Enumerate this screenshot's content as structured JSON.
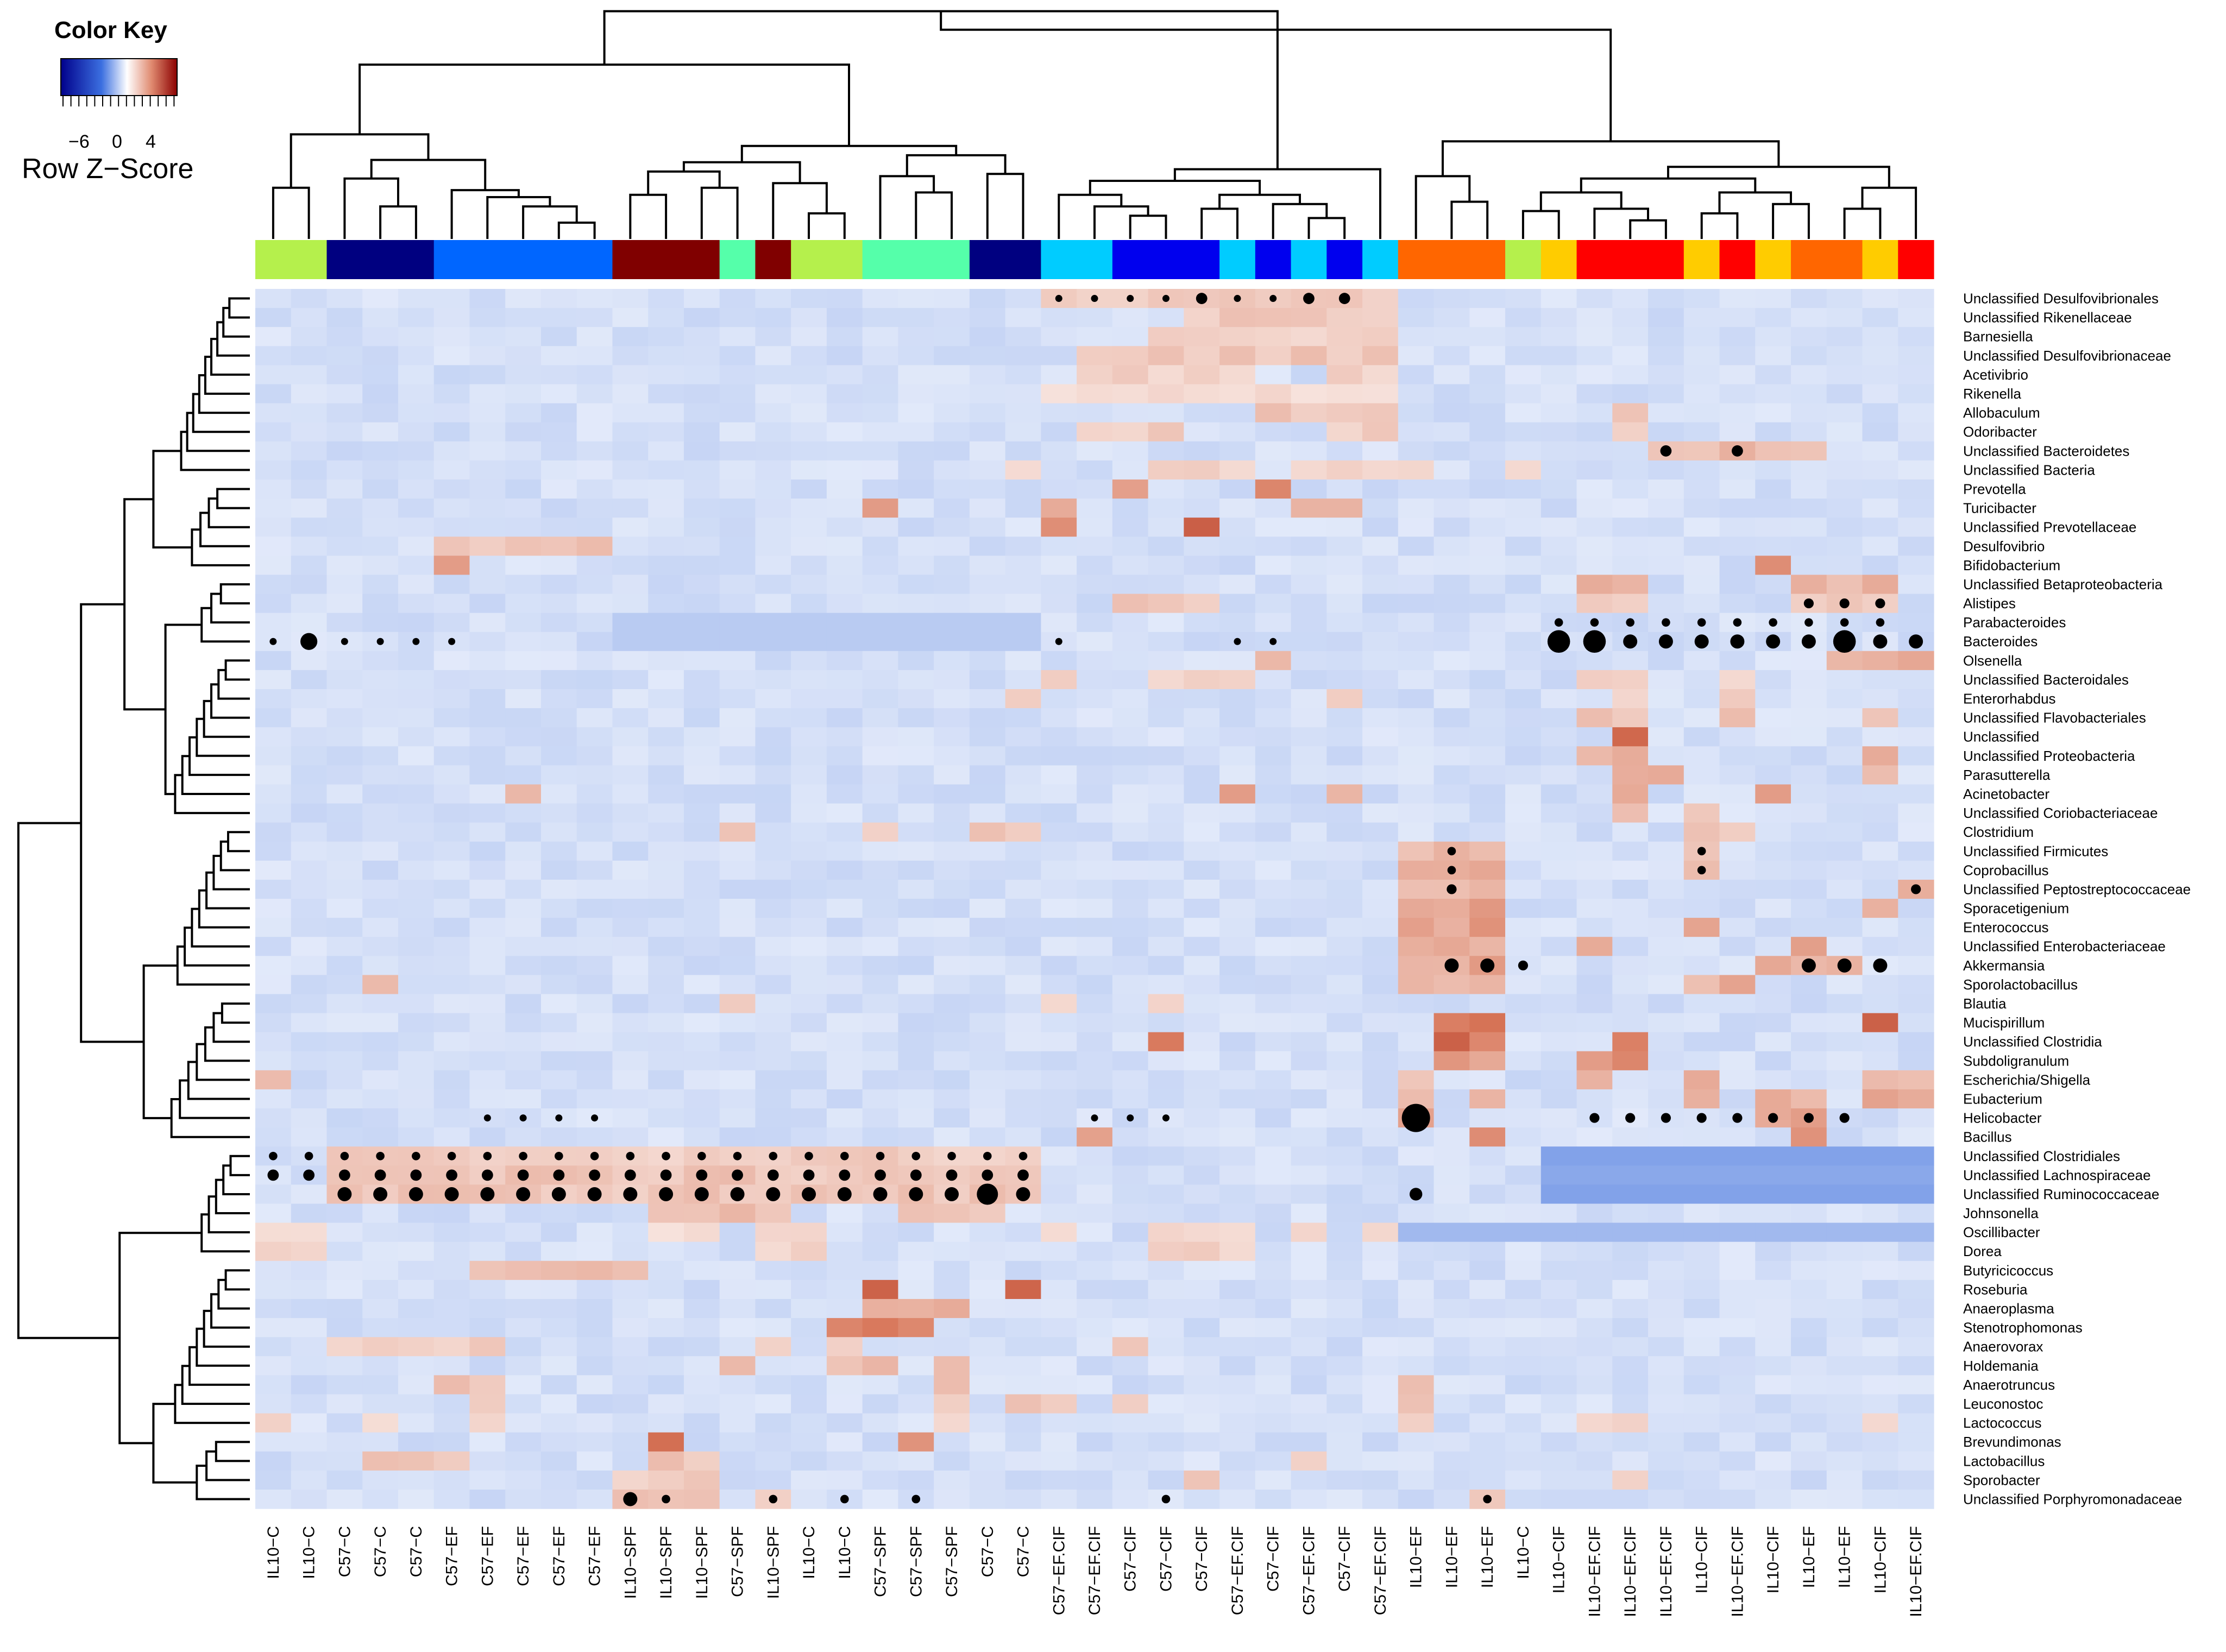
{
  "colors": {
    "low": "#00008b",
    "mid": "#ffffff",
    "high": "#8b0000",
    "background": "#ffffff"
  },
  "chart_data": {
    "type": "heatmap",
    "title": "",
    "color_key": {
      "title": "Color Key",
      "label": "Row Z−Score",
      "ticks": [
        "−6",
        "0",
        "4"
      ],
      "range": [
        -8,
        6
      ]
    },
    "group_colors": {
      "IL10-C": "#b5f04c",
      "C57-C": "#000080",
      "C57-EF": "#0066ff",
      "IL10-SPF": "#800000",
      "C57-SPF": "#55ffaa",
      "C57-EF.CIF": "#00ccff",
      "C57-CIF": "#0000ee",
      "IL10-EF": "#ff6600",
      "IL10-CIF": "#ffcc00",
      "IL10-EF.CIF": "#ff0000"
    },
    "columns": [
      "IL10−C",
      "IL10−C",
      "C57−C",
      "C57−C",
      "C57−C",
      "C57−EF",
      "C57−EF",
      "C57−EF",
      "C57−EF",
      "C57−EF",
      "IL10−SPF",
      "IL10−SPF",
      "IL10−SPF",
      "C57−SPF",
      "IL10−SPF",
      "IL10−C",
      "IL10−C",
      "C57−SPF",
      "C57−SPF",
      "C57−SPF",
      "C57−C",
      "C57−C",
      "C57−EF.CIF",
      "C57−EF.CIF",
      "C57−CIF",
      "C57−CIF",
      "C57−CIF",
      "C57−EF.CIF",
      "C57−CIF",
      "C57−EF.CIF",
      "C57−CIF",
      "C57−EF.CIF",
      "IL10−EF",
      "IL10−EF",
      "IL10−EF",
      "IL10−C",
      "IL10−CIF",
      "IL10−EF.CIF",
      "IL10−EF.CIF",
      "IL10−EF.CIF",
      "IL10−CIF",
      "IL10−EF.CIF",
      "IL10−CIF",
      "IL10−EF",
      "IL10−EF",
      "IL10−CIF",
      "IL10−EF.CIF"
    ],
    "column_groups": [
      "IL10-C",
      "IL10-C",
      "C57-C",
      "C57-C",
      "C57-C",
      "C57-EF",
      "C57-EF",
      "C57-EF",
      "C57-EF",
      "C57-EF",
      "IL10-SPF",
      "IL10-SPF",
      "IL10-SPF",
      "C57-SPF",
      "IL10-SPF",
      "IL10-C",
      "IL10-C",
      "C57-SPF",
      "C57-SPF",
      "C57-SPF",
      "C57-C",
      "C57-C",
      "C57-EF.CIF",
      "C57-EF.CIF",
      "C57-CIF",
      "C57-CIF",
      "C57-CIF",
      "C57-EF.CIF",
      "C57-CIF",
      "C57-EF.CIF",
      "C57-CIF",
      "C57-EF.CIF",
      "IL10-EF",
      "IL10-EF",
      "IL10-EF",
      "IL10-C",
      "IL10-CIF",
      "IL10-EF.CIF",
      "IL10-EF.CIF",
      "IL10-EF.CIF",
      "IL10-CIF",
      "IL10-EF.CIF",
      "IL10-CIF",
      "IL10-EF",
      "IL10-EF",
      "IL10-CIF",
      "IL10-EF.CIF"
    ],
    "rows": [
      "Unclassified Desulfovibrionales",
      "Unclassified Rikenellaceae",
      "Barnesiella",
      "Unclassified Desulfovibrionaceae",
      "Acetivibrio",
      "Rikenella",
      "Allobaculum",
      "Odoribacter",
      "Unclassified Bacteroidetes",
      "Unclassified Bacteria",
      "Prevotella",
      "Turicibacter",
      "Unclassified Prevotellaceae",
      "Desulfovibrio",
      "Bifidobacterium",
      "Unclassified Betaproteobacteria",
      "Alistipes",
      "Parabacteroides",
      "Bacteroides",
      "Olsenella",
      "Unclassified Bacteroidales",
      "Enterorhabdus",
      "Unclassified Flavobacteriales",
      "Unclassified",
      "Unclassified Proteobacteria",
      "Parasutterella",
      "Acinetobacter",
      "Unclassified Coriobacteriaceae",
      "Clostridium",
      "Unclassified Firmicutes",
      "Coprobacillus",
      "Unclassified Peptostreptococcaceae",
      "Sporacetigenium",
      "Enterococcus",
      "Unclassified Enterobacteriaceae",
      "Akkermansia",
      "Sporolactobacillus",
      "Blautia",
      "Mucispirillum",
      "Unclassified Clostridia",
      "Subdoligranulum",
      "Escherichia/Shigella",
      "Eubacterium",
      "Helicobacter",
      "Bacillus",
      "Unclassified Clostridiales",
      "Unclassified Lachnospiraceae",
      "Unclassified Ruminococcaceae",
      "Johnsonella",
      "Oscillibacter",
      "Dorea",
      "Butyricicoccus",
      "Roseburia",
      "Anaeroplasma",
      "Stenotrophomonas",
      "Anaerovorax",
      "Holdemania",
      "Anaerotruncus",
      "Leuconostoc",
      "Lactococcus",
      "Brevundimonas",
      "Lactobacillus",
      "Sporobacter",
      "Unclassified Porphyromonadaceae"
    ],
    "hot_cells": [
      {
        "row": 0,
        "cols": [
          22,
          23,
          24,
          25,
          26,
          27,
          28,
          29,
          30,
          31
        ],
        "value": 1.5
      },
      {
        "row": 1,
        "cols": [
          26,
          27,
          28,
          29,
          30,
          31
        ],
        "value": 1.5
      },
      {
        "row": 2,
        "cols": [
          25,
          26,
          27,
          28,
          29,
          30,
          31
        ],
        "value": 1.2
      },
      {
        "row": 3,
        "cols": [
          23,
          24,
          25,
          26,
          27,
          28,
          29,
          30,
          31
        ],
        "value": 1.6
      },
      {
        "row": 4,
        "cols": [
          23,
          24,
          25,
          26,
          27,
          30,
          31
        ],
        "value": 1.3
      },
      {
        "row": 5,
        "cols": [
          22,
          23,
          24,
          25,
          26,
          27,
          28,
          29,
          30,
          31
        ],
        "value": 1.0
      },
      {
        "row": 6,
        "cols": [
          28,
          29,
          30,
          31,
          38
        ],
        "value": 1.6
      },
      {
        "row": 7,
        "cols": [
          23,
          24,
          25,
          30,
          31,
          38
        ],
        "value": 1.4
      },
      {
        "row": 8,
        "cols": [
          39,
          40,
          41,
          42,
          43
        ],
        "value": 2.0
      },
      {
        "row": 9,
        "cols": [
          21,
          25,
          26,
          27,
          29,
          30,
          31,
          32,
          35
        ],
        "value": 1.2
      },
      {
        "row": 10,
        "cols": [
          24,
          28
        ],
        "value": 3.0
      },
      {
        "row": 11,
        "cols": [
          17,
          22,
          29,
          30
        ],
        "value": 2.5
      },
      {
        "row": 12,
        "cols": [
          22,
          26
        ],
        "value": 3.5
      },
      {
        "row": 13,
        "cols": [
          5,
          6,
          7,
          8,
          9
        ],
        "value": 1.6
      },
      {
        "row": 14,
        "cols": [
          5,
          42
        ],
        "value": 3.2
      },
      {
        "row": 15,
        "cols": [
          37,
          38,
          43,
          44,
          45
        ],
        "value": 2.0
      },
      {
        "row": 16,
        "cols": [
          24,
          25,
          26,
          37,
          38,
          43,
          44,
          45
        ],
        "value": 1.6
      },
      {
        "row": 19,
        "cols": [
          28,
          44,
          45,
          46
        ],
        "value": 2.2
      },
      {
        "row": 20,
        "cols": [
          22,
          25,
          26,
          27,
          37,
          38,
          41
        ],
        "value": 1.2
      },
      {
        "row": 21,
        "cols": [
          21,
          30,
          38,
          41
        ],
        "value": 1.3
      },
      {
        "row": 22,
        "cols": [
          37,
          38,
          41,
          45
        ],
        "value": 1.6
      },
      {
        "row": 23,
        "cols": [
          38
        ],
        "value": 5.0
      },
      {
        "row": 24,
        "cols": [
          37,
          38,
          45
        ],
        "value": 2.3
      },
      {
        "row": 25,
        "cols": [
          38,
          39,
          45
        ],
        "value": 2.0
      },
      {
        "row": 26,
        "cols": [
          7,
          27,
          30,
          38,
          42
        ],
        "value": 2.4
      },
      {
        "row": 27,
        "cols": [
          38,
          40
        ],
        "value": 1.8
      },
      {
        "row": 28,
        "cols": [
          13,
          17,
          20,
          21,
          40,
          41
        ],
        "value": 1.5
      },
      {
        "row": 29,
        "cols": [
          32,
          33,
          34,
          40
        ],
        "value": 2.0
      },
      {
        "row": 30,
        "cols": [
          32,
          33,
          34,
          40
        ],
        "value": 2.2
      },
      {
        "row": 31,
        "cols": [
          32,
          33,
          34,
          46
        ],
        "value": 2.0
      },
      {
        "row": 32,
        "cols": [
          32,
          33,
          34,
          45
        ],
        "value": 2.6
      },
      {
        "row": 33,
        "cols": [
          32,
          33,
          34,
          40
        ],
        "value": 2.6
      },
      {
        "row": 34,
        "cols": [
          32,
          33,
          34,
          37,
          43
        ],
        "value": 2.4
      },
      {
        "row": 35,
        "cols": [
          32,
          33,
          34,
          42,
          43,
          44
        ],
        "value": 2.4
      },
      {
        "row": 36,
        "cols": [
          3,
          32,
          33,
          34,
          40,
          41
        ],
        "value": 2.2
      },
      {
        "row": 37,
        "cols": [
          13,
          22,
          25
        ],
        "value": 1.4
      },
      {
        "row": 38,
        "cols": [
          33,
          34,
          45
        ],
        "value": 4.2
      },
      {
        "row": 39,
        "cols": [
          25,
          33,
          34,
          38
        ],
        "value": 3.6
      },
      {
        "row": 40,
        "cols": [
          33,
          34,
          37,
          38
        ],
        "value": 3.0
      },
      {
        "row": 41,
        "cols": [
          0,
          32,
          37,
          40,
          45,
          46
        ],
        "value": 2.0
      },
      {
        "row": 42,
        "cols": [
          32,
          34,
          40,
          42,
          43,
          45,
          46
        ],
        "value": 2.2
      },
      {
        "row": 43,
        "cols": [
          32,
          42,
          43
        ],
        "value": 2.5
      },
      {
        "row": 44,
        "cols": [
          23,
          34,
          43
        ],
        "value": 2.8
      },
      {
        "row": 45,
        "cols": [
          2,
          3,
          4,
          5,
          6,
          7,
          8,
          9,
          10,
          11,
          12,
          13,
          14,
          15,
          16,
          17,
          18,
          19,
          20,
          21
        ],
        "value": 1.4
      },
      {
        "row": 46,
        "cols": [
          2,
          3,
          4,
          5,
          6,
          7,
          8,
          9,
          10,
          11,
          12,
          13,
          14,
          15,
          16,
          17,
          18,
          19,
          20,
          21
        ],
        "value": 1.6
      },
      {
        "row": 47,
        "cols": [
          2,
          3,
          4,
          5,
          6,
          7,
          8,
          9,
          10,
          11,
          12,
          13,
          14,
          15,
          16,
          17,
          18,
          19,
          20,
          21
        ],
        "value": 1.6
      },
      {
        "row": 48,
        "cols": [
          11,
          12,
          13,
          14,
          18,
          19,
          20
        ],
        "value": 1.8
      },
      {
        "row": 49,
        "cols": [
          0,
          1,
          11,
          12,
          14,
          15,
          22,
          25,
          26,
          27,
          29,
          31
        ],
        "value": 1.0
      },
      {
        "row": 50,
        "cols": [
          0,
          1,
          14,
          15,
          25,
          26,
          27
        ],
        "value": 1.3
      },
      {
        "row": 51,
        "cols": [
          6,
          7,
          8,
          9,
          10
        ],
        "value": 1.8
      },
      {
        "row": 52,
        "cols": [
          21,
          17
        ],
        "value": 4.0
      },
      {
        "row": 53,
        "cols": [
          17,
          18,
          19
        ],
        "value": 2.6
      },
      {
        "row": 54,
        "cols": [
          17,
          18,
          16
        ],
        "value": 3.2
      },
      {
        "row": 55,
        "cols": [
          2,
          3,
          4,
          5,
          6,
          14,
          16,
          24
        ],
        "value": 1.4
      },
      {
        "row": 56,
        "cols": [
          16,
          17,
          13,
          19
        ],
        "value": 1.8
      },
      {
        "row": 57,
        "cols": [
          5,
          6,
          19,
          32
        ],
        "value": 1.6
      },
      {
        "row": 58,
        "cols": [
          6,
          19,
          21,
          22,
          24,
          32
        ],
        "value": 1.6
      },
      {
        "row": 59,
        "cols": [
          0,
          3,
          6,
          19,
          32,
          37,
          38,
          45
        ],
        "value": 1.2
      },
      {
        "row": 60,
        "cols": [
          11,
          18
        ],
        "value": 3.8
      },
      {
        "row": 61,
        "cols": [
          3,
          4,
          5,
          11,
          12,
          29
        ],
        "value": 1.6
      },
      {
        "row": 62,
        "cols": [
          10,
          11,
          12,
          26,
          38
        ],
        "value": 1.4
      },
      {
        "row": 63,
        "cols": [
          10,
          11,
          12,
          14,
          34
        ],
        "value": 1.6
      }
    ],
    "cold_cells": [
      {
        "row": 45,
        "cols": [
          36,
          37,
          38,
          39,
          40,
          41,
          42,
          43,
          44,
          45,
          46
        ],
        "value": -1.6
      },
      {
        "row": 46,
        "cols": [
          36,
          37,
          38,
          39,
          40,
          41,
          42,
          43,
          44,
          45,
          46
        ],
        "value": -1.5
      },
      {
        "row": 47,
        "cols": [
          36,
          37,
          38,
          39,
          40,
          41,
          42,
          43,
          44,
          45,
          46
        ],
        "value": -1.6
      },
      {
        "row": 49,
        "cols": [
          32,
          33,
          34,
          35,
          36,
          37,
          38,
          39,
          40,
          41,
          42,
          43,
          44,
          45,
          46
        ],
        "value": -1.2
      },
      {
        "row": 18,
        "cols": [
          10,
          11,
          12,
          13,
          14,
          15,
          16,
          17,
          18,
          19,
          20,
          21
        ],
        "value": -0.9
      },
      {
        "row": 17,
        "cols": [
          10,
          11,
          12,
          13,
          14,
          15,
          16,
          17,
          18,
          19,
          20,
          21
        ],
        "value": -0.9
      }
    ],
    "dots": [
      {
        "row": 0,
        "cols": [
          22,
          23,
          24,
          25,
          27,
          28,
          29,
          30
        ],
        "size": 0.5
      },
      {
        "row": 0,
        "cols": [
          26,
          29,
          30
        ],
        "size": 0.8
      },
      {
        "row": 16,
        "cols": [
          43,
          44,
          45
        ],
        "size": 0.7
      },
      {
        "row": 17,
        "cols": [
          36,
          37,
          38,
          39,
          40,
          41,
          42,
          43,
          44,
          45
        ],
        "size": 0.6
      },
      {
        "row": 18,
        "cols": [
          36,
          37,
          44
        ],
        "size": 1.6
      },
      {
        "row": 18,
        "cols": [
          38,
          39,
          40,
          41,
          42,
          43,
          45,
          46
        ],
        "size": 1.0
      },
      {
        "row": 18,
        "cols": [
          1
        ],
        "size": 1.2
      },
      {
        "row": 18,
        "cols": [
          0,
          2,
          3,
          4,
          5,
          22,
          27,
          28
        ],
        "size": 0.5
      },
      {
        "row": 8,
        "cols": [
          39,
          41
        ],
        "size": 0.8
      },
      {
        "row": 29,
        "cols": [
          33,
          40
        ],
        "size": 0.6
      },
      {
        "row": 30,
        "cols": [
          33,
          40
        ],
        "size": 0.6
      },
      {
        "row": 31,
        "cols": [
          33,
          46
        ],
        "size": 0.7
      },
      {
        "row": 35,
        "cols": [
          33,
          34,
          43,
          44,
          45
        ],
        "size": 1.0
      },
      {
        "row": 35,
        "cols": [
          35
        ],
        "size": 0.7
      },
      {
        "row": 43,
        "cols": [
          32
        ],
        "size": 2.0
      },
      {
        "row": 43,
        "cols": [
          37,
          38,
          39,
          40,
          41,
          42,
          43,
          44
        ],
        "size": 0.7
      },
      {
        "row": 43,
        "cols": [
          23,
          24,
          25,
          6,
          7,
          8,
          9
        ],
        "size": 0.5
      },
      {
        "row": 45,
        "cols": [
          0,
          1,
          2,
          3,
          4,
          5,
          6,
          7,
          8,
          9,
          10,
          11,
          12,
          13,
          14,
          15,
          16,
          17,
          18,
          19,
          20,
          21
        ],
        "size": 0.6
      },
      {
        "row": 46,
        "cols": [
          0,
          1,
          2,
          3,
          4,
          5,
          6,
          7,
          8,
          9,
          10,
          11,
          12,
          13,
          14,
          15,
          16,
          17,
          18,
          19,
          20,
          21
        ],
        "size": 0.8
      },
      {
        "row": 47,
        "cols": [
          2,
          3,
          4,
          5,
          6,
          7,
          8,
          9,
          10,
          11,
          12,
          13,
          14,
          15,
          16,
          17,
          18,
          19,
          20,
          21
        ],
        "size": 1.0
      },
      {
        "row": 47,
        "cols": [
          20
        ],
        "size": 1.5
      },
      {
        "row": 47,
        "cols": [
          32
        ],
        "size": 0.9
      },
      {
        "row": 63,
        "cols": [
          10
        ],
        "size": 1.0
      },
      {
        "row": 63,
        "cols": [
          11,
          14,
          16,
          18,
          25,
          34
        ],
        "size": 0.6
      }
    ]
  }
}
